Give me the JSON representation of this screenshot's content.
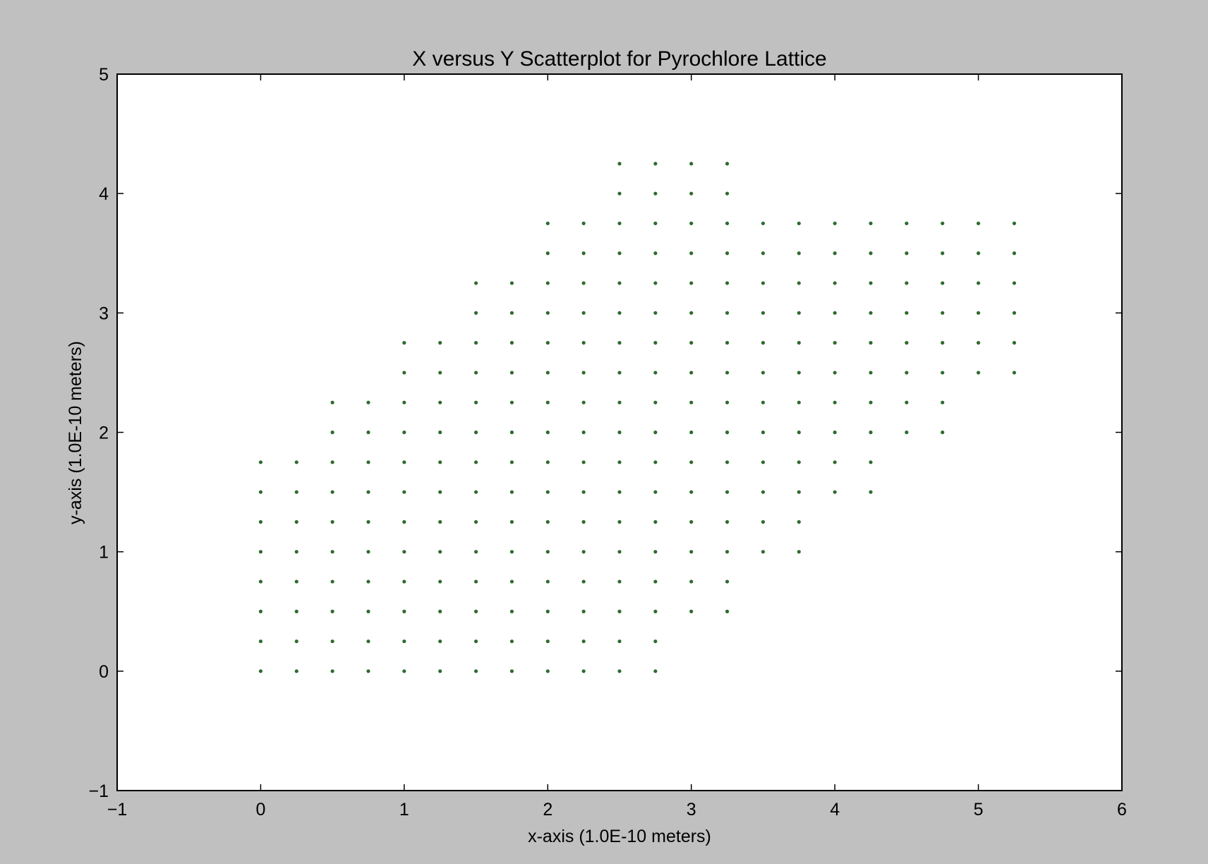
{
  "chart_data": {
    "type": "scatter",
    "title": "X versus Y Scatterplot for Pyrochlore Lattice",
    "xlabel": "x-axis (1.0E-10 meters)",
    "ylabel": "y-axis (1.0E-10 meters)",
    "xlim": [
      -1,
      6
    ],
    "ylim": [
      -1,
      5
    ],
    "xticks": [
      -1,
      0,
      1,
      2,
      3,
      4,
      5,
      6
    ],
    "yticks": [
      -1,
      0,
      1,
      2,
      3,
      4,
      5
    ],
    "xtick_labels": [
      "−1",
      "0",
      "1",
      "2",
      "3",
      "4",
      "5",
      "6"
    ],
    "ytick_labels": [
      "−1",
      "0",
      "1",
      "2",
      "3",
      "4",
      "5"
    ],
    "grid": false,
    "marker_color": "#2e6b2e",
    "background_color": "#c0c0c0",
    "plot_background_color": "#ffffff",
    "step": 0.25,
    "rows": [
      {
        "y": 0.0,
        "x_from": 0.0,
        "x_to": 2.75
      },
      {
        "y": 0.25,
        "x_from": 0.0,
        "x_to": 2.75
      },
      {
        "y": 0.5,
        "x_from": 0.0,
        "x_to": 3.25
      },
      {
        "y": 0.75,
        "x_from": 0.0,
        "x_to": 3.25
      },
      {
        "y": 1.0,
        "x_from": 0.0,
        "x_to": 3.75
      },
      {
        "y": 1.25,
        "x_from": 0.0,
        "x_to": 3.75
      },
      {
        "y": 1.5,
        "x_from": 0.0,
        "x_to": 4.25
      },
      {
        "y": 1.75,
        "x_from": 0.0,
        "x_to": 4.25
      },
      {
        "y": 2.0,
        "x_from": 0.5,
        "x_to": 4.75
      },
      {
        "y": 2.25,
        "x_from": 0.5,
        "x_to": 4.75
      },
      {
        "y": 2.5,
        "x_from": 1.0,
        "x_to": 5.25
      },
      {
        "y": 2.75,
        "x_from": 1.0,
        "x_to": 5.25
      },
      {
        "y": 3.0,
        "x_from": 1.5,
        "x_to": 5.25
      },
      {
        "y": 3.25,
        "x_from": 1.5,
        "x_to": 5.25
      },
      {
        "y": 3.5,
        "x_from": 2.0,
        "x_to": 5.25
      },
      {
        "y": 3.75,
        "x_from": 2.0,
        "x_to": 5.25
      },
      {
        "y": 4.0,
        "x_from": 2.5,
        "x_to": 3.25
      },
      {
        "y": 4.25,
        "x_from": 2.5,
        "x_to": 3.25
      }
    ]
  }
}
